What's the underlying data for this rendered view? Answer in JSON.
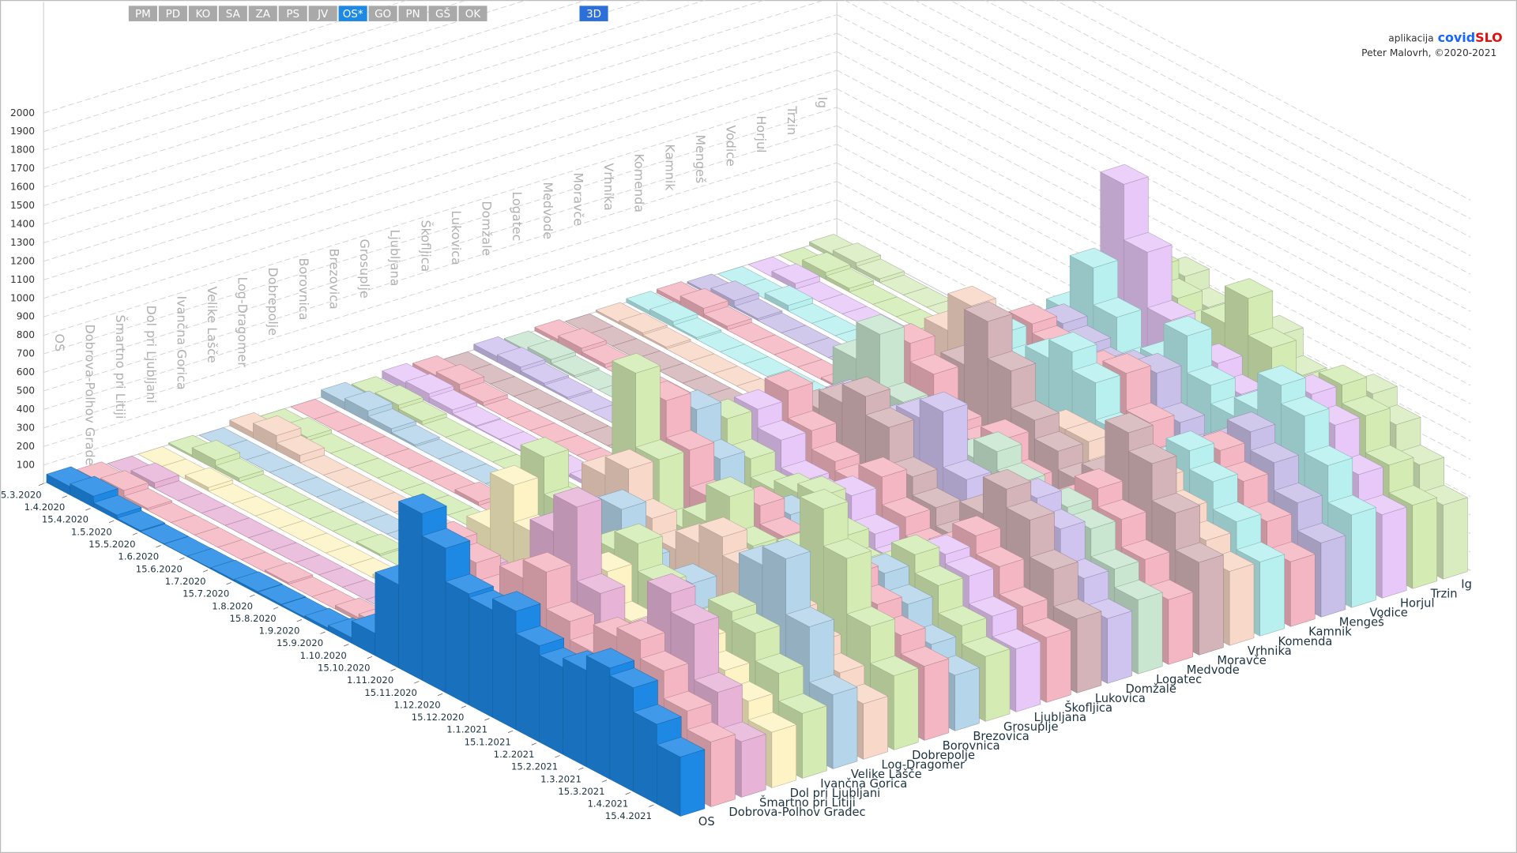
{
  "toolbar": {
    "buttons": [
      "PM",
      "PD",
      "KO",
      "SA",
      "ZA",
      "PS",
      "JV",
      "OS*",
      "GO",
      "PN",
      "GŠ",
      "OK"
    ],
    "selected": "OS*",
    "view_button": "3D"
  },
  "credit": {
    "prefix": "aplikacija",
    "brand_a": "covid",
    "brand_b": "SLO",
    "author": "Peter Malovrh, ©2020-2021"
  },
  "chart_data": {
    "type": "bar3d",
    "categories": [
      "15.3.2020",
      "1.4.2020",
      "15.4.2020",
      "1.5.2020",
      "15.5.2020",
      "1.6.2020",
      "15.6.2020",
      "1.7.2020",
      "15.7.2020",
      "1.8.2020",
      "15.8.2020",
      "1.9.2020",
      "15.9.2020",
      "1.10.2020",
      "15.10.2020",
      "1.11.2020",
      "15.11.2020",
      "1.12.2020",
      "15.12.2020",
      "1.1.2021",
      "15.1.2021",
      "1.2.2021",
      "15.2.2021",
      "1.3.2021",
      "15.3.2021",
      "1.4.2021",
      "15.4.2021"
    ],
    "ylim": [
      0,
      2000
    ],
    "yticks": [
      100,
      200,
      300,
      400,
      500,
      600,
      700,
      800,
      900,
      1000,
      1100,
      1200,
      1300,
      1400,
      1500,
      1600,
      1700,
      1800,
      1900,
      2000
    ],
    "grid": true,
    "series": [
      {
        "name": "OS",
        "color": "#1e88e5",
        "values": [
          45,
          60,
          25,
          8,
          3,
          2,
          4,
          8,
          12,
          10,
          8,
          15,
          30,
          120,
          450,
          900,
          780,
          600,
          580,
          640,
          520,
          470,
          520,
          600,
          560,
          430,
          320
        ]
      },
      {
        "name": "Dobrova-Polhov Gradec",
        "color": "#f4b6c2",
        "values": [
          20,
          40,
          10,
          0,
          0,
          0,
          0,
          0,
          10,
          0,
          0,
          20,
          40,
          150,
          500,
          700,
          650,
          550,
          700,
          800,
          600,
          500,
          650,
          700,
          600,
          450,
          350
        ]
      },
      {
        "name": "Šmartno pri Litiji",
        "color": "#e7b4d8",
        "values": [
          0,
          30,
          0,
          0,
          0,
          0,
          0,
          0,
          0,
          0,
          0,
          0,
          30,
          100,
          300,
          500,
          400,
          450,
          900,
          1100,
          700,
          500,
          600,
          900,
          800,
          500,
          300
        ]
      },
      {
        "name": "Dol pri Ljubljani",
        "color": "#fdf3c4",
        "values": [
          0,
          0,
          20,
          0,
          0,
          0,
          0,
          0,
          0,
          0,
          20,
          0,
          50,
          200,
          600,
          900,
          700,
          400,
          500,
          700,
          500,
          400,
          500,
          600,
          500,
          400,
          300
        ]
      },
      {
        "name": "Ivančna Gorica",
        "color": "#d4ecb4",
        "values": [
          10,
          50,
          20,
          0,
          0,
          0,
          0,
          0,
          10,
          0,
          0,
          10,
          60,
          250,
          700,
          1000,
          800,
          600,
          700,
          800,
          650,
          500,
          550,
          700,
          650,
          500,
          350
        ]
      },
      {
        "name": "Velike Lašče",
        "color": "#b5d5ea",
        "values": [
          0,
          0,
          0,
          0,
          0,
          0,
          0,
          0,
          0,
          30,
          0,
          0,
          40,
          150,
          400,
          600,
          700,
          800,
          600,
          500,
          600,
          450,
          500,
          900,
          1000,
          700,
          400
        ]
      },
      {
        "name": "Log-Dragomer",
        "color": "#f8d8c8",
        "values": [
          30,
          80,
          40,
          0,
          0,
          0,
          0,
          0,
          0,
          0,
          0,
          20,
          50,
          200,
          500,
          800,
          900,
          700,
          600,
          700,
          800,
          700,
          500,
          600,
          500,
          400,
          300
        ]
      },
      {
        "name": "Dobrepolje",
        "color": "#d4ecb4",
        "values": [
          0,
          20,
          0,
          0,
          0,
          0,
          0,
          0,
          0,
          0,
          0,
          0,
          30,
          120,
          500,
          1300,
          900,
          600,
          700,
          900,
          700,
          600,
          800,
          1100,
          900,
          600,
          400
        ]
      },
      {
        "name": "Borovnica",
        "color": "#f4b6c2",
        "values": [
          0,
          0,
          0,
          0,
          0,
          0,
          0,
          20,
          0,
          0,
          0,
          0,
          40,
          300,
          800,
          1100,
          900,
          700,
          600,
          800,
          700,
          600,
          500,
          700,
          600,
          500,
          400
        ]
      },
      {
        "name": "Brezovica",
        "color": "#b5d5ea",
        "values": [
          40,
          60,
          30,
          10,
          0,
          0,
          0,
          0,
          10,
          10,
          0,
          20,
          60,
          300,
          700,
          1000,
          800,
          600,
          650,
          700,
          550,
          450,
          500,
          650,
          550,
          400,
          300
        ]
      },
      {
        "name": "Grosuplje",
        "color": "#d4ecb4",
        "values": [
          20,
          40,
          20,
          0,
          0,
          0,
          0,
          10,
          0,
          0,
          10,
          20,
          70,
          350,
          750,
          900,
          750,
          650,
          700,
          750,
          600,
          500,
          550,
          700,
          600,
          450,
          350
        ]
      },
      {
        "name": "Ljubljana",
        "color": "#e8c8f8",
        "values": [
          40,
          50,
          30,
          10,
          5,
          5,
          10,
          10,
          20,
          15,
          10,
          20,
          60,
          300,
          650,
          900,
          800,
          650,
          620,
          700,
          560,
          480,
          540,
          650,
          600,
          450,
          340
        ]
      },
      {
        "name": "Škofljica",
        "color": "#f4b6c2",
        "values": [
          30,
          50,
          20,
          0,
          0,
          0,
          0,
          0,
          10,
          0,
          0,
          20,
          60,
          280,
          700,
          950,
          800,
          700,
          650,
          750,
          600,
          500,
          550,
          700,
          600,
          450,
          350
        ]
      },
      {
        "name": "Lukovica",
        "color": "#d4b4b8",
        "values": [
          0,
          0,
          0,
          0,
          0,
          0,
          0,
          0,
          0,
          0,
          0,
          0,
          40,
          200,
          600,
          800,
          900,
          1000,
          900,
          700,
          600,
          500,
          700,
          900,
          800,
          600,
          400
        ]
      },
      {
        "name": "Domžale",
        "color": "#cfc3f0",
        "values": [
          30,
          40,
          20,
          10,
          0,
          0,
          0,
          0,
          10,
          10,
          0,
          20,
          60,
          250,
          600,
          800,
          700,
          800,
          900,
          1000,
          700,
          550,
          600,
          800,
          700,
          500,
          350
        ]
      },
      {
        "name": "Logatec",
        "color": "#c8e6d0",
        "values": [
          10,
          30,
          10,
          0,
          0,
          0,
          0,
          0,
          0,
          0,
          0,
          10,
          50,
          400,
          900,
          1100,
          800,
          600,
          600,
          700,
          800,
          700,
          600,
          700,
          650,
          500,
          400
        ]
      },
      {
        "name": "Medvode",
        "color": "#f4b6c2",
        "values": [
          20,
          40,
          20,
          0,
          0,
          0,
          0,
          0,
          10,
          0,
          0,
          20,
          70,
          300,
          800,
          1000,
          900,
          700,
          650,
          750,
          600,
          500,
          600,
          750,
          650,
          500,
          350
        ]
      },
      {
        "name": "Moravče",
        "color": "#d4b4b8",
        "values": [
          0,
          0,
          0,
          0,
          0,
          0,
          0,
          0,
          0,
          0,
          0,
          0,
          20,
          150,
          500,
          700,
          900,
          1200,
          1000,
          800,
          700,
          600,
          700,
          1000,
          900,
          700,
          500
        ]
      },
      {
        "name": "Vrhnika",
        "color": "#f8d8c8",
        "values": [
          10,
          20,
          10,
          0,
          0,
          0,
          0,
          0,
          0,
          10,
          0,
          10,
          60,
          350,
          900,
          1100,
          850,
          650,
          600,
          700,
          700,
          600,
          550,
          700,
          600,
          500,
          400
        ]
      },
      {
        "name": "Komenda",
        "color": "#b8f0f0",
        "values": [
          20,
          30,
          10,
          0,
          0,
          0,
          0,
          0,
          0,
          0,
          0,
          20,
          60,
          250,
          700,
          900,
          800,
          900,
          1000,
          900,
          700,
          600,
          650,
          800,
          700,
          550,
          400
        ]
      },
      {
        "name": "Kamnik",
        "color": "#f4b6c2",
        "values": [
          20,
          50,
          20,
          0,
          0,
          0,
          0,
          10,
          10,
          0,
          0,
          20,
          70,
          300,
          700,
          900,
          850,
          800,
          850,
          900,
          700,
          550,
          600,
          750,
          650,
          500,
          350
        ]
      },
      {
        "name": "Mengeš",
        "color": "#c8c0e8",
        "values": [
          10,
          40,
          10,
          0,
          0,
          0,
          0,
          0,
          0,
          0,
          0,
          10,
          50,
          250,
          650,
          850,
          800,
          750,
          800,
          850,
          650,
          550,
          650,
          800,
          700,
          550,
          400
        ]
      },
      {
        "name": "Vodice",
        "color": "#b8f0f0",
        "values": [
          0,
          0,
          30,
          0,
          0,
          0,
          0,
          0,
          0,
          0,
          0,
          0,
          60,
          300,
          800,
          1100,
          900,
          700,
          800,
          1000,
          800,
          700,
          800,
          1000,
          900,
          700,
          500
        ]
      },
      {
        "name": "Horjul",
        "color": "#e8c8f8",
        "values": [
          0,
          30,
          0,
          0,
          0,
          0,
          0,
          0,
          0,
          0,
          0,
          0,
          40,
          250,
          900,
          1500,
          1200,
          900,
          700,
          800,
          700,
          600,
          700,
          900,
          800,
          600,
          450
        ]
      },
      {
        "name": "Trzin",
        "color": "#d4ecb4",
        "values": [
          0,
          40,
          20,
          0,
          0,
          0,
          0,
          0,
          0,
          0,
          0,
          30,
          80,
          300,
          800,
          1000,
          900,
          800,
          900,
          1100,
          900,
          700,
          800,
          900,
          800,
          600,
          450
        ]
      },
      {
        "name": "Ig",
        "color": "#d8ecc0",
        "values": [
          20,
          40,
          20,
          0,
          0,
          0,
          0,
          0,
          0,
          0,
          10,
          20,
          60,
          300,
          700,
          900,
          800,
          700,
          750,
          850,
          700,
          600,
          650,
          800,
          700,
          550,
          400
        ]
      }
    ]
  }
}
